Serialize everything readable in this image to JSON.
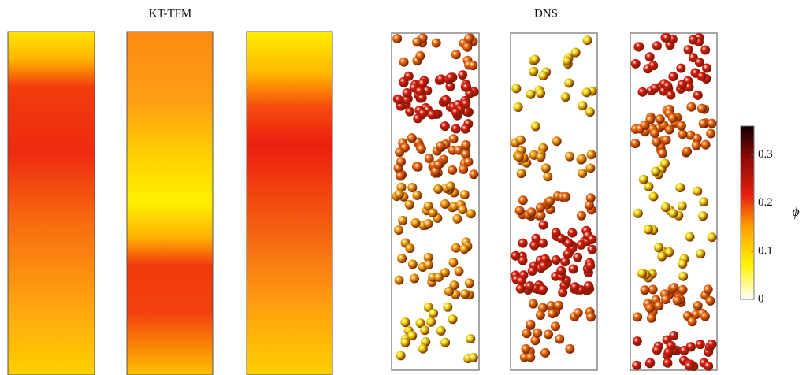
{
  "figure": {
    "left_title": "KT-TFM",
    "right_title": "DNS"
  },
  "colorbar": {
    "label": "ϕ",
    "lim": [
      0,
      0.36
    ],
    "ticks": [
      0,
      0.1,
      0.2,
      0.3
    ]
  }
}
